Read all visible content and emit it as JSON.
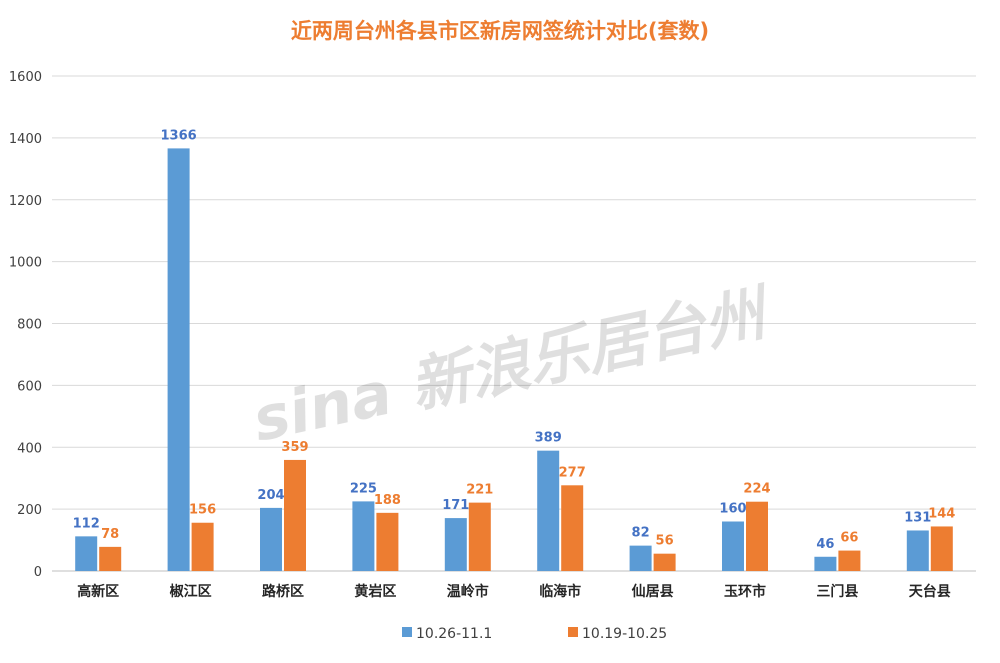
{
  "chart_data": {
    "type": "bar",
    "title": "近两周台州各县市区新房网签统计对比(套数)",
    "categories": [
      "高新区",
      "椒江区",
      "路桥区",
      "黄岩区",
      "温岭市",
      "临海市",
      "仙居县",
      "玉环市",
      "三门县",
      "天台县"
    ],
    "series": [
      {
        "name": "10.26-11.1",
        "color": "#5b9bd5",
        "label_color": "#4472c4",
        "values": [
          112,
          1366,
          204,
          225,
          171,
          389,
          82,
          160,
          46,
          131
        ]
      },
      {
        "name": "10.19-10.25",
        "color": "#ed7d31",
        "label_color": "#ed7d31",
        "values": [
          78,
          156,
          359,
          188,
          221,
          277,
          56,
          224,
          66,
          144
        ]
      }
    ],
    "ylim": [
      0,
      1600
    ],
    "yticks": [
      0,
      200,
      400,
      600,
      800,
      1000,
      1200,
      1400,
      1600
    ],
    "grid": true,
    "legend_position": "bottom",
    "title_color": "#ed7d31",
    "watermark": "sina 新浪乐居台州"
  }
}
